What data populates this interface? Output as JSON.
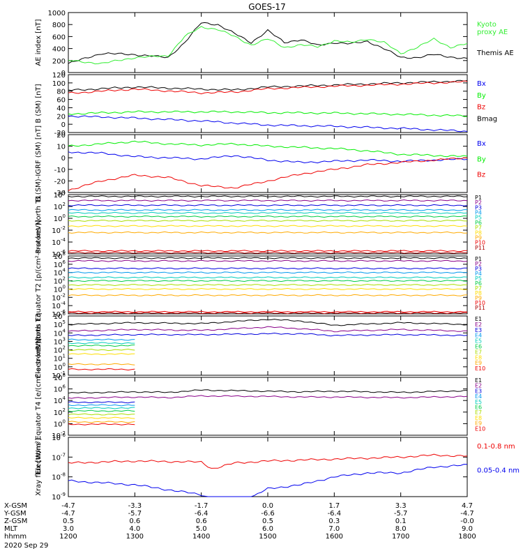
{
  "title": "GOES-17",
  "colors": {
    "black": "#000000",
    "green": "#00ee00",
    "blue": "#0000ee",
    "red": "#ee0000",
    "kyoto": "#33ee33",
    "P": [
      "#000000",
      "#880088",
      "#0000dd",
      "#0099ee",
      "#00ccbb",
      "#00cc44",
      "#aadd00",
      "#ffdd00",
      "#ffaa00",
      "#ee0000",
      "#aa0000"
    ],
    "E": [
      "#000000",
      "#880088",
      "#0000dd",
      "#0099ee",
      "#00ccbb",
      "#00cc44",
      "#aadd00",
      "#ffdd00",
      "#ffaa00",
      "#ee0000"
    ]
  },
  "time_axis": {
    "hhmm": [
      "1200",
      "1300",
      "1400",
      "1500",
      "1600",
      "1700",
      "1800"
    ],
    "rows": [
      {
        "label": "X-GSM",
        "values": [
          "-4.7",
          "-3.3",
          "-1.7",
          "0.0",
          "1.7",
          "3.3",
          "4.7"
        ]
      },
      {
        "label": "Y-GSM",
        "values": [
          "-4.7",
          "-5.7",
          "-6.4",
          "-6.6",
          "-6.4",
          "-5.7",
          "-4.7"
        ]
      },
      {
        "label": "Z-GSM",
        "values": [
          "0.5",
          "0.6",
          "0.6",
          "0.5",
          "0.3",
          "0.1",
          "-0.0"
        ]
      },
      {
        "label": "MLT",
        "values": [
          "3.0",
          "4.0",
          "5.0",
          "6.0",
          "7.0",
          "8.0",
          "9.0"
        ]
      },
      {
        "label": "hhmm",
        "values": [
          "1200",
          "1300",
          "1400",
          "1500",
          "1600",
          "1700",
          "1800"
        ]
      }
    ],
    "date": "2020 Sep 29"
  },
  "chart_data": [
    {
      "type": "line",
      "ylabel": "AE index [nT]",
      "ylim": [
        0,
        1000
      ],
      "log": false,
      "yticks": [
        "0",
        "200",
        "400",
        "600",
        "800",
        "1000"
      ],
      "legend": [
        {
          "text": "Kyoto",
          "color": "kyoto"
        },
        {
          "text": "proxy AE",
          "color": "kyoto"
        },
        {
          "text": "Themis AE",
          "color": "black"
        }
      ],
      "x": [
        1200,
        1230,
        1300,
        1330,
        1345,
        1400,
        1415,
        1430,
        1445,
        1500,
        1515,
        1530,
        1545,
        1600,
        1615,
        1630,
        1645,
        1700,
        1715,
        1730,
        1745,
        1800
      ],
      "series": [
        {
          "name": "Themis AE",
          "color": "black",
          "values": [
            150,
            320,
            300,
            250,
            500,
            830,
            800,
            650,
            500,
            700,
            500,
            550,
            450,
            500,
            480,
            520,
            400,
            250,
            250,
            300,
            260,
            230
          ]
        },
        {
          "name": "Kyoto proxy AE",
          "color": "kyoto",
          "values": [
            200,
            150,
            250,
            280,
            600,
            760,
            720,
            600,
            460,
            560,
            420,
            460,
            430,
            530,
            500,
            560,
            500,
            320,
            420,
            560,
            420,
            480
          ]
        }
      ]
    },
    {
      "type": "line",
      "ylabel": "B (SM) [nT]",
      "ylim": [
        -20,
        120
      ],
      "log": false,
      "yticks": [
        "-20",
        "0",
        "20",
        "40",
        "60",
        "80",
        "100",
        "120"
      ],
      "legend": [
        {
          "text": "Bx",
          "color": "blue"
        },
        {
          "text": "By",
          "color": "green"
        },
        {
          "text": "Bz",
          "color": "red"
        },
        {
          "text": "Bmag",
          "color": "black"
        }
      ],
      "x": [
        1200,
        1300,
        1400,
        1430,
        1500,
        1600,
        1700,
        1800
      ],
      "series": [
        {
          "name": "Bmag",
          "color": "black",
          "values": [
            82,
            90,
            85,
            83,
            90,
            95,
            100,
            105
          ]
        },
        {
          "name": "Bz",
          "color": "red",
          "values": [
            75,
            85,
            76,
            78,
            86,
            92,
            97,
            103
          ]
        },
        {
          "name": "By",
          "color": "green",
          "values": [
            25,
            30,
            30,
            30,
            28,
            27,
            24,
            20
          ]
        },
        {
          "name": "Bx",
          "color": "blue",
          "values": [
            20,
            15,
            8,
            3,
            -2,
            -5,
            -10,
            -17
          ]
        }
      ]
    },
    {
      "type": "line",
      "ylabel": "B (SM)-IGRF (SM) [nT]",
      "ylim": [
        -30,
        20
      ],
      "log": false,
      "yticks": [
        "-30",
        "-20",
        "-10",
        "0",
        "10",
        "20"
      ],
      "legend": [
        {
          "text": "Bx",
          "color": "blue"
        },
        {
          "text": "By",
          "color": "green"
        },
        {
          "text": "Bz",
          "color": "red"
        }
      ],
      "x": [
        1200,
        1230,
        1300,
        1330,
        1400,
        1430,
        1500,
        1530,
        1600,
        1630,
        1700,
        1730,
        1800
      ],
      "series": [
        {
          "name": "By",
          "color": "green",
          "values": [
            10,
            12,
            14,
            12,
            11,
            12,
            10,
            9,
            8,
            6,
            3,
            2,
            1
          ]
        },
        {
          "name": "Bx",
          "color": "blue",
          "values": [
            5,
            4,
            1,
            0,
            -1,
            2,
            -2,
            -4,
            -3,
            -2,
            -3,
            -2,
            -1
          ]
        },
        {
          "name": "Bz",
          "color": "red",
          "values": [
            -28,
            -20,
            -15,
            -17,
            -24,
            -26,
            -20,
            -14,
            -10,
            -6,
            -4,
            -2,
            0
          ]
        }
      ]
    },
    {
      "type": "line",
      "ylabel": "Protons North T1",
      "ylim": [
        -6,
        4
      ],
      "log": true,
      "yticks": [
        "10^-6",
        "10^-4",
        "10^-2",
        "10^0",
        "10^2",
        "10^4"
      ],
      "legend_prefix": "P",
      "x": [
        1200,
        1800
      ],
      "series_levels": [
        3.7,
        3.0,
        2.2,
        1.4,
        0.9,
        0.3,
        -0.4,
        -1.3,
        -2.4,
        -5.5,
        -5.8
      ]
    },
    {
      "type": "line",
      "ylabel": "Protons Equator T2 [p/(cm²-s-sr-keV)]",
      "ylim": [
        -6,
        8
      ],
      "log": true,
      "yticks": [
        "10^-6",
        "10^-4",
        "10^-2",
        "10^0",
        "10^2",
        "10^4",
        "10^6",
        "10^8"
      ],
      "legend_prefix": "P",
      "x": [
        1200,
        1800
      ],
      "series_levels": [
        7.5,
        6.8,
        5.0,
        4.0,
        2.8,
        2.0,
        1.0,
        0.0,
        -1.5,
        -5.5,
        -5.8
      ]
    },
    {
      "type": "line",
      "ylabel": "Electrons North T3",
      "ylim": [
        -1,
        6
      ],
      "log": true,
      "yticks": [
        "10^-1",
        "10^0",
        "10^1",
        "10^2",
        "10^3",
        "10^4",
        "10^5",
        "10^6"
      ],
      "legend_prefix": "E",
      "x": [
        1200,
        1300,
        1400,
        1500,
        1530,
        1600,
        1700,
        1800
      ],
      "series": [
        {
          "values": [
            5.0,
            5.2,
            5.1,
            5.6,
            5.4,
            4.9,
            5.2,
            5.0
          ]
        },
        {
          "values": [
            4.2,
            4.4,
            4.3,
            4.7,
            4.5,
            4.2,
            4.4,
            4.2
          ]
        },
        {
          "values": [
            3.7,
            3.8,
            3.8,
            3.9,
            3.9,
            3.7,
            3.8,
            3.7
          ]
        }
      ],
      "series_levels_after": [
        3.2,
        2.8,
        2.5,
        2.0,
        1.5,
        0.3,
        -0.3
      ]
    },
    {
      "type": "line",
      "ylabel": "Electrons Equator T4 [e/(cm²-s-sr-keV)]",
      "ylim": [
        -2,
        8
      ],
      "log": true,
      "yticks": [
        "10^-2",
        "10^0",
        "10^2",
        "10^4",
        "10^6",
        "10^8"
      ],
      "legend_prefix": "E",
      "x": [
        1200,
        1300,
        1330,
        1400,
        1500,
        1530,
        1600,
        1700,
        1800
      ],
      "series": [
        {
          "values": [
            5.3,
            5.5,
            5.4,
            5.8,
            5.6,
            5.5,
            5.6,
            5.4,
            5.7
          ]
        },
        {
          "values": [
            4.4,
            4.6,
            4.5,
            4.8,
            4.7,
            4.6,
            4.6,
            4.5,
            4.7
          ]
        }
      ],
      "series_levels_after": [
        3.7,
        3.2,
        2.7,
        2.2,
        1.6,
        1.0,
        0.3,
        -0.1
      ]
    },
    {
      "type": "line",
      "ylabel": "Xray flux [W/m²]",
      "ylim": [
        -9,
        -6
      ],
      "log": true,
      "yticks": [
        "10^-9",
        "10^-8",
        "10^-7",
        "10^-6"
      ],
      "legend": [
        {
          "text": "0.1-0.8 nm",
          "color": "red"
        },
        {
          "text": "0.05-0.4 nm",
          "color": "blue"
        }
      ],
      "x": [
        1200,
        1300,
        1400,
        1410,
        1430,
        1500,
        1530,
        1600,
        1630,
        1700,
        1730,
        1800
      ],
      "series": [
        {
          "name": "0.1-0.8 nm",
          "color": "red",
          "values": [
            -7.3,
            -7.2,
            -7.25,
            -7.6,
            -7.3,
            -7.2,
            -7.15,
            -7.1,
            -7.05,
            -7.0,
            -6.9,
            -6.95
          ]
        },
        {
          "name": "0.05-0.4 nm",
          "color": "blue",
          "values": [
            -8.2,
            -8.4,
            -8.9,
            -9.1,
            -9.5,
            -8.6,
            -8.4,
            -8.0,
            -7.8,
            -7.8,
            -7.5,
            -7.4
          ]
        }
      ]
    }
  ]
}
